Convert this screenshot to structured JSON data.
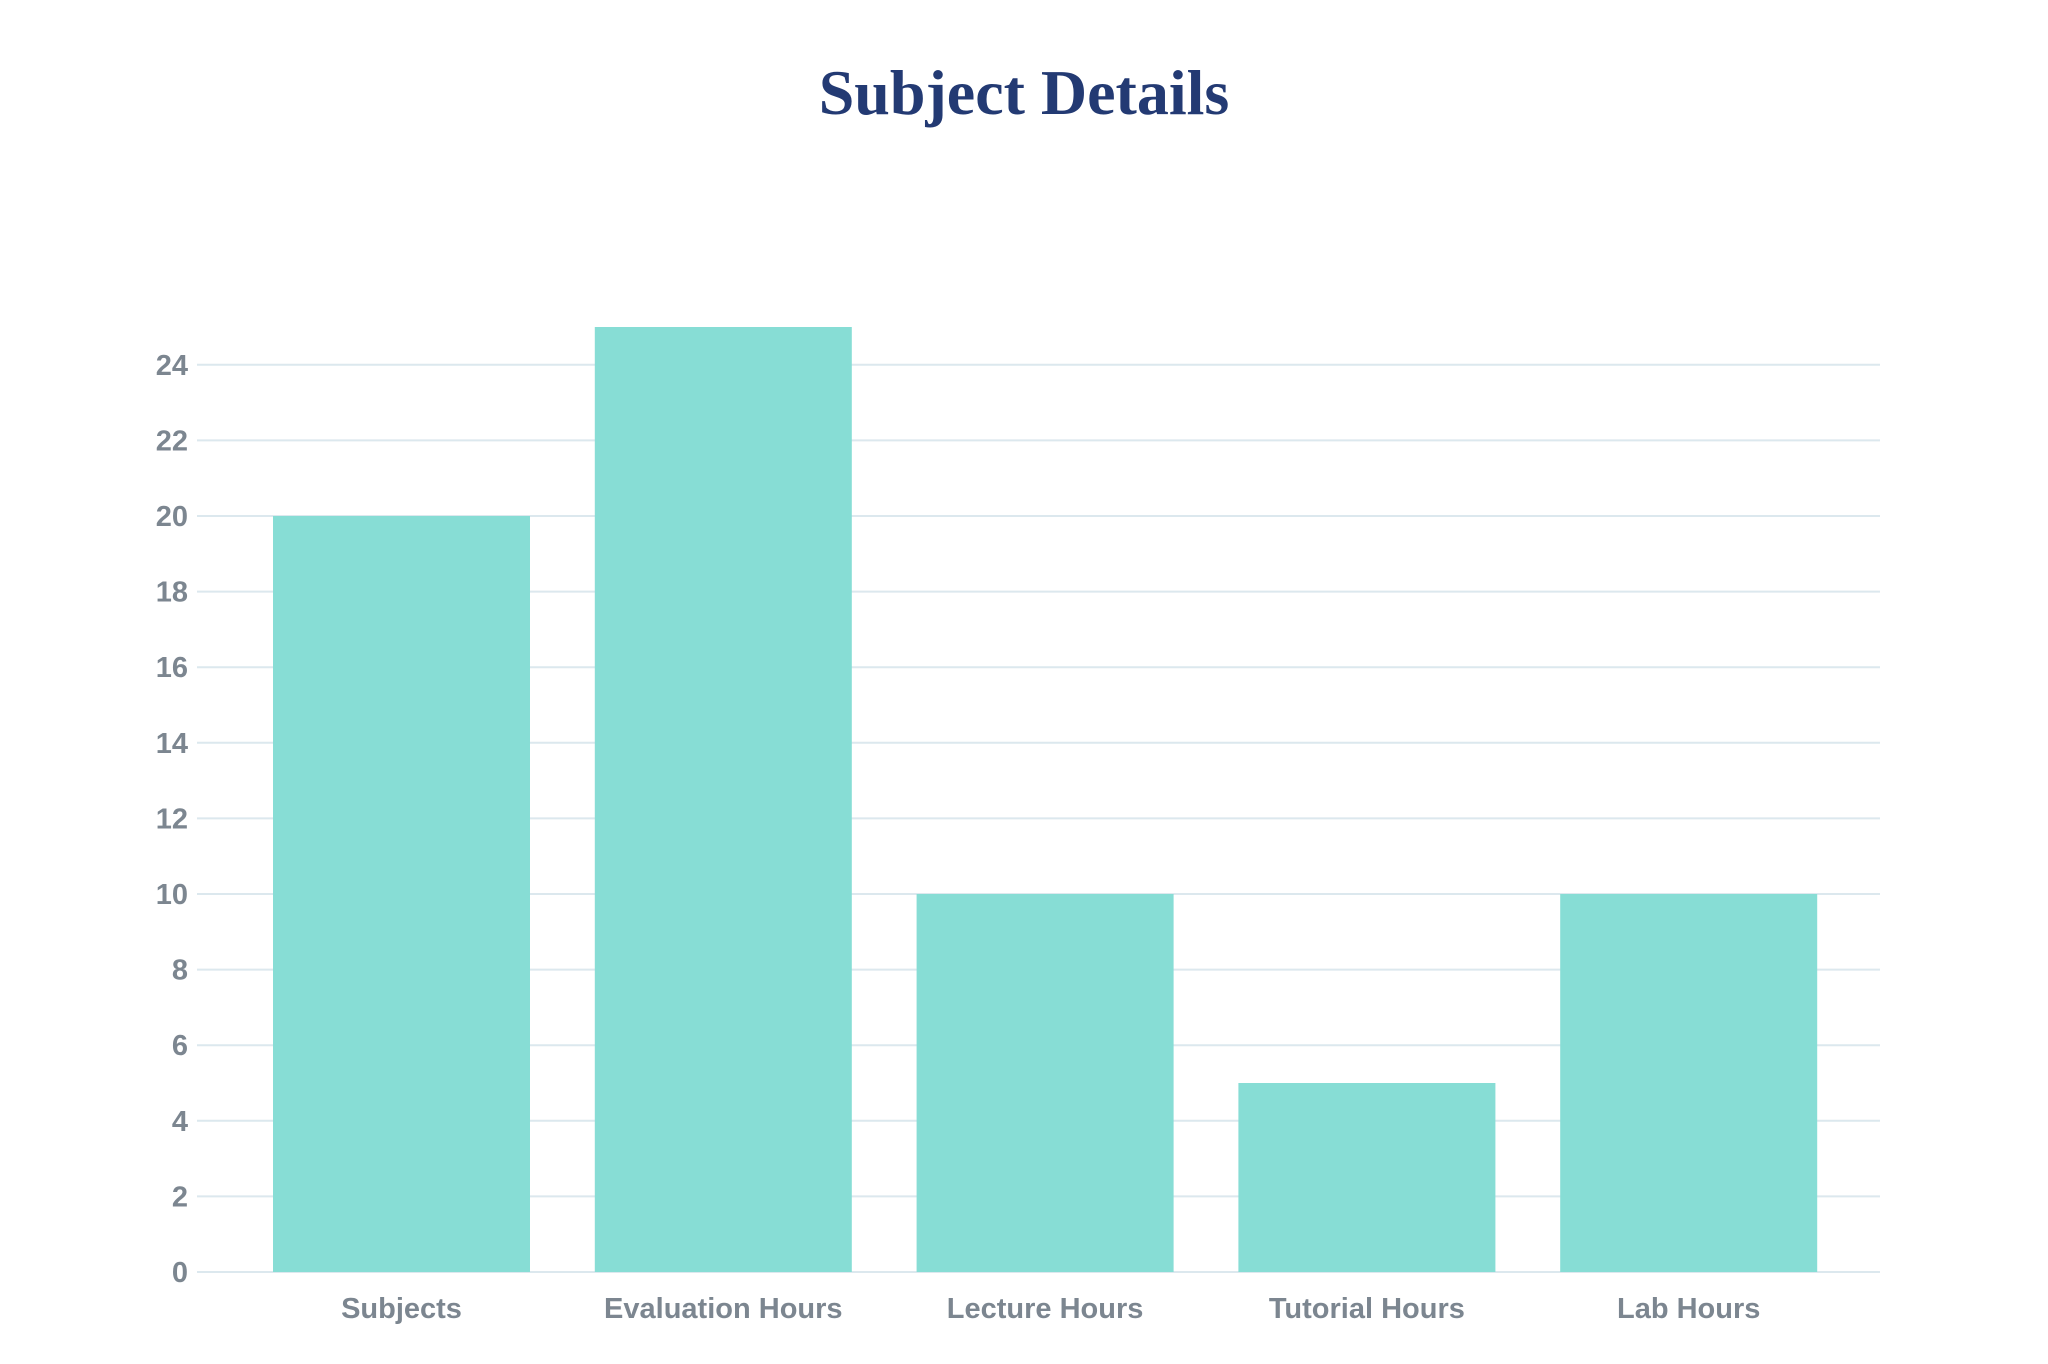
{
  "colors": {
    "title": "#233a73",
    "bar": "#87ddd5",
    "grid": "#dce8ee",
    "axis_text": "#7c8690"
  },
  "chart_data": {
    "type": "bar",
    "title": "Subject Details",
    "categories": [
      "Subjects",
      "Evaluation Hours",
      "Lecture Hours",
      "Tutorial Hours",
      "Lab Hours"
    ],
    "values": [
      20,
      25,
      10,
      5,
      10
    ],
    "ylim": [
      0,
      25
    ],
    "yticks": [
      0,
      2,
      4,
      6,
      8,
      10,
      12,
      14,
      16,
      18,
      20,
      22,
      24
    ],
    "grid": true,
    "legend": "none"
  }
}
